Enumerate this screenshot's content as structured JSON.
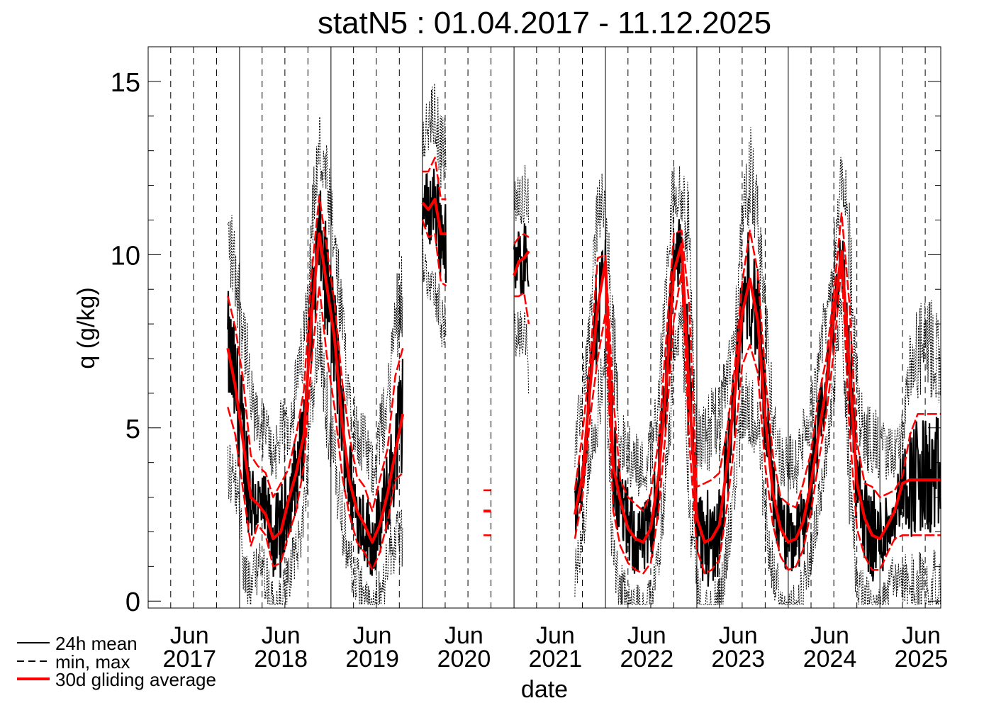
{
  "chart_data": {
    "type": "line",
    "title": "statN5 : 01.04.2017 - 11.12.2025",
    "xlabel": "date",
    "ylabel": "q (g/kg)",
    "xlim": [
      "2017-01-01",
      "2025-09-01"
    ],
    "ylim": [
      -0.2,
      16
    ],
    "yticks": [
      {
        "value": 0,
        "label": "0"
      },
      {
        "value": 5,
        "label": "5"
      },
      {
        "value": 10,
        "label": "10"
      },
      {
        "value": 15,
        "label": "15"
      }
    ],
    "xticks": [
      {
        "month": "Jun",
        "year": "2017",
        "x": "2017-06-15"
      },
      {
        "month": "Jun",
        "year": "2018",
        "x": "2018-06-15"
      },
      {
        "month": "Jun",
        "year": "2019",
        "x": "2019-06-15"
      },
      {
        "month": "Jun",
        "year": "2020",
        "x": "2020-06-15"
      },
      {
        "month": "Jun",
        "year": "2021",
        "x": "2021-06-15"
      },
      {
        "month": "Jun",
        "year": "2022",
        "x": "2022-06-15"
      },
      {
        "month": "Jun",
        "year": "2023",
        "x": "2023-06-15"
      },
      {
        "month": "Jun",
        "year": "2024",
        "x": "2024-06-15"
      },
      {
        "month": "Jun",
        "year": "2025",
        "x": "2025-06-15"
      }
    ],
    "grid": true,
    "legend_position": "bottom-left",
    "legend": [
      {
        "label": "24h mean",
        "style": "solid",
        "color": "#000000"
      },
      {
        "label": "min, max",
        "style": "dashed",
        "color": "#000000"
      },
      {
        "label": "30d gliding average",
        "style": "solid",
        "color": "#ff0000"
      }
    ],
    "series": [
      {
        "name": "30d gliding average",
        "segments": [
          {
            "x": [
              "2017-11-15",
              "2017-12-15",
              "2018-01-15",
              "2018-02-15",
              "2018-03-15",
              "2018-04-15",
              "2018-05-15",
              "2018-06-15",
              "2018-07-15",
              "2018-08-15",
              "2018-09-15",
              "2018-10-15",
              "2018-11-15",
              "2018-12-15",
              "2019-01-15",
              "2019-02-15",
              "2019-03-15",
              "2019-04-15",
              "2019-05-15",
              "2019-06-15",
              "2019-07-15",
              "2019-08-15",
              "2019-09-15",
              "2019-10-15"
            ],
            "mean": [
              7.3,
              6.2,
              4.6,
              3.0,
              2.8,
              2.5,
              1.8,
              2.0,
              2.9,
              3.7,
              4.8,
              8.2,
              10.6,
              9.1,
              7.6,
              5.1,
              3.5,
              2.6,
              2.2,
              1.7,
              2.2,
              3.1,
              4.3,
              5.4
            ],
            "min": [
              5.6,
              4.8,
              3.2,
              1.6,
              2.2,
              1.9,
              1.0,
              1.1,
              1.9,
              2.6,
              3.9,
              6.9,
              9.1,
              7.1,
              5.6,
              3.6,
              2.5,
              1.7,
              1.4,
              0.9,
              1.4,
              2.3,
              3.5,
              3.7
            ],
            "max": [
              8.8,
              7.9,
              6.4,
              4.2,
              3.9,
              3.7,
              3.0,
              3.4,
              3.8,
              4.8,
              6.1,
              9.4,
              11.7,
              10.2,
              8.6,
              6.3,
              4.8,
              3.6,
              3.3,
              2.6,
              3.5,
              4.4,
              6.5,
              7.3
            ]
          },
          {
            "x": [
              "2020-01-01",
              "2020-01-25",
              "2020-02-20",
              "2020-03-15",
              "2020-04-05"
            ],
            "mean": [
              11.5,
              11.3,
              11.6,
              10.6,
              10.6
            ],
            "min": [
              11.0,
              10.5,
              10.6,
              9.2,
              9.1
            ],
            "max": [
              12.4,
              12.4,
              12.8,
              11.6,
              11.6
            ]
          },
          {
            "x": [
              "2020-09-01",
              "2020-10-01"
            ],
            "mean": [
              2.6,
              2.6
            ],
            "min": [
              1.9,
              1.9
            ],
            "max": [
              3.2,
              3.2
            ]
          },
          {
            "x": [
              "2021-01-01",
              "2021-01-20",
              "2021-02-10",
              "2021-03-01"
            ],
            "mean": [
              9.4,
              9.8,
              9.9,
              10.1
            ],
            "min": [
              8.8,
              8.8,
              8.9,
              8.0
            ],
            "max": [
              10.3,
              10.5,
              10.6,
              10.5
            ]
          },
          {
            "x": [
              "2021-09-01",
              "2021-10-01",
              "2021-11-01",
              "2021-12-01",
              "2022-01-01",
              "2022-02-01",
              "2022-03-01",
              "2022-04-01",
              "2022-05-01",
              "2022-06-01",
              "2022-07-01",
              "2022-08-01",
              "2022-09-01",
              "2022-10-01",
              "2022-11-01",
              "2022-12-01",
              "2023-01-01",
              "2023-02-01",
              "2023-03-01",
              "2023-04-01",
              "2023-05-01",
              "2023-06-01",
              "2023-07-01",
              "2023-08-01",
              "2023-09-01",
              "2023-10-01",
              "2023-11-01",
              "2023-12-01",
              "2024-01-01",
              "2024-02-01",
              "2024-03-01",
              "2024-04-01",
              "2024-05-01",
              "2024-06-01",
              "2024-07-01",
              "2024-08-01",
              "2024-09-01",
              "2024-10-01",
              "2024-11-01",
              "2024-12-01",
              "2025-01-01",
              "2025-02-01",
              "2025-03-01",
              "2025-04-01",
              "2025-05-01",
              "2025-06-01",
              "2025-07-01",
              "2025-08-01",
              "2025-09-01"
            ],
            "mean": [
              2.5,
              3.6,
              6.2,
              8.5,
              9.8,
              3.9,
              2.9,
              2.1,
              1.8,
              1.7,
              2.1,
              3.6,
              6.3,
              9.5,
              10.3,
              6.1,
              2.4,
              1.7,
              1.8,
              2.2,
              3.9,
              5.9,
              8.3,
              9.3,
              8.1,
              5.3,
              3.1,
              2.1,
              1.7,
              1.8,
              2.3,
              3.4,
              4.8,
              6.2,
              8.3,
              10.1,
              6.7,
              3.4,
              2.4,
              1.9,
              1.8,
              2.2,
              2.6,
              3.4,
              3.5,
              3.5,
              3.5,
              3.5,
              3.5
            ],
            "min": [
              1.8,
              3.0,
              5.3,
              7.0,
              8.3,
              2.6,
              1.6,
              1.1,
              0.9,
              0.8,
              1.1,
              2.6,
              5.1,
              8.1,
              9.5,
              4.7,
              1.5,
              0.8,
              0.9,
              1.2,
              2.7,
              4.6,
              6.8,
              7.4,
              6.6,
              3.9,
              2.2,
              1.3,
              0.9,
              1.0,
              1.5,
              2.6,
              4.0,
              5.4,
              7.2,
              9.7,
              5.0,
              2.1,
              1.3,
              0.9,
              0.9,
              1.4,
              1.8,
              1.9,
              1.9,
              1.9,
              1.9,
              1.9,
              1.9
            ],
            "max": [
              3.2,
              4.8,
              7.0,
              9.9,
              10.0,
              5.9,
              3.5,
              3.0,
              2.8,
              2.6,
              3.1,
              4.6,
              7.6,
              10.6,
              10.7,
              8.6,
              3.3,
              3.4,
              3.5,
              3.7,
              4.9,
              6.7,
              9.2,
              10.7,
              9.5,
              6.5,
              4.2,
              3.0,
              2.8,
              2.7,
              3.4,
              4.3,
              5.9,
              7.0,
              8.9,
              11.2,
              8.6,
              4.6,
              3.4,
              3.3,
              3.0,
              3.1,
              3.2,
              3.6,
              4.8,
              5.4,
              5.4,
              5.4,
              5.4
            ]
          }
        ]
      }
    ],
    "colors": {
      "line": "#000000",
      "average": "#ff0000",
      "grid": "#000000"
    }
  }
}
